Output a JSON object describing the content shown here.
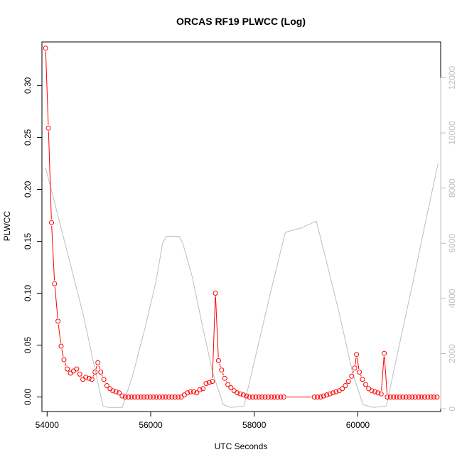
{
  "chart_data": {
    "type": "line",
    "title": "ORCAS RF19 PLWCC (Log)",
    "xlabel": "UTC Seconds",
    "ylabel": "PLWCC",
    "xlim": [
      53900,
      61600
    ],
    "ylim": [
      -0.014,
      0.342
    ],
    "y2lim": [
      -100,
      13300
    ],
    "x_ticks": [
      "54000",
      "56000",
      "58000",
      "60000"
    ],
    "y_ticks": [
      "0.00",
      "0.05",
      "0.10",
      "0.15",
      "0.20",
      "0.25",
      "0.30"
    ],
    "y2_ticks": [
      "0",
      "2000",
      "4000",
      "6000",
      "8000",
      "10000",
      "12000"
    ],
    "colors": {
      "primary": "#ff0000",
      "secondary": "#bebebe",
      "axis": "#000000"
    },
    "series": [
      {
        "color": "#ff0000",
        "marker": "open-circle",
        "axis": "left",
        "values": [
          [
            53970,
            0.336
          ],
          [
            54025,
            0.259
          ],
          [
            54085,
            0.168
          ],
          [
            54145,
            0.109
          ],
          [
            54210,
            0.073
          ],
          [
            54270,
            0.049
          ],
          [
            54325,
            0.036
          ],
          [
            54390,
            0.027
          ],
          [
            54450,
            0.023
          ],
          [
            54510,
            0.025
          ],
          [
            54570,
            0.027
          ],
          [
            54630,
            0.022
          ],
          [
            54690,
            0.017
          ],
          [
            54745,
            0.019
          ],
          [
            54810,
            0.018
          ],
          [
            54865,
            0.017
          ],
          [
            54925,
            0.024
          ],
          [
            54980,
            0.033
          ],
          [
            55035,
            0.024
          ],
          [
            55095,
            0.017
          ],
          [
            55155,
            0.011
          ],
          [
            55215,
            0.008
          ],
          [
            55270,
            0.006
          ],
          [
            55330,
            0.005
          ],
          [
            55390,
            0.004
          ],
          [
            55450,
            0.001
          ],
          [
            55510,
            0.0
          ],
          [
            55570,
            0.0
          ],
          [
            55630,
            0.0
          ],
          [
            55690,
            0.0
          ],
          [
            55750,
            0.0
          ],
          [
            55810,
            0.0
          ],
          [
            55870,
            0.0
          ],
          [
            55930,
            0.0
          ],
          [
            55990,
            0.0
          ],
          [
            56050,
            0.0
          ],
          [
            56110,
            0.0
          ],
          [
            56170,
            0.0
          ],
          [
            56230,
            0.0
          ],
          [
            56290,
            0.0
          ],
          [
            56350,
            0.0
          ],
          [
            56410,
            0.0
          ],
          [
            56470,
            0.0
          ],
          [
            56530,
            0.0
          ],
          [
            56590,
            0.0
          ],
          [
            56650,
            0.002
          ],
          [
            56710,
            0.004
          ],
          [
            56770,
            0.005
          ],
          [
            56830,
            0.005
          ],
          [
            56890,
            0.004
          ],
          [
            56950,
            0.007
          ],
          [
            57010,
            0.008
          ],
          [
            57070,
            0.013
          ],
          [
            57130,
            0.014
          ],
          [
            57190,
            0.015
          ],
          [
            57250,
            0.1
          ],
          [
            57310,
            0.035
          ],
          [
            57370,
            0.026
          ],
          [
            57430,
            0.018
          ],
          [
            57490,
            0.012
          ],
          [
            57550,
            0.009
          ],
          [
            57610,
            0.006
          ],
          [
            57670,
            0.004
          ],
          [
            57730,
            0.003
          ],
          [
            57790,
            0.002
          ],
          [
            57850,
            0.001
          ],
          [
            57910,
            0.0
          ],
          [
            57970,
            0.0
          ],
          [
            58030,
            0.0
          ],
          [
            58090,
            0.0
          ],
          [
            58150,
            0.0
          ],
          [
            58210,
            0.0
          ],
          [
            58270,
            0.0
          ],
          [
            58330,
            0.0
          ],
          [
            58390,
            0.0
          ],
          [
            58450,
            0.0
          ],
          [
            58510,
            0.0
          ],
          [
            58570,
            0.0
          ],
          [
            59160,
            0.0
          ],
          [
            59220,
            0.0
          ],
          [
            59280,
            0.0
          ],
          [
            59340,
            0.001
          ],
          [
            59400,
            0.002
          ],
          [
            59460,
            0.003
          ],
          [
            59520,
            0.004
          ],
          [
            59580,
            0.005
          ],
          [
            59640,
            0.006
          ],
          [
            59700,
            0.008
          ],
          [
            59760,
            0.011
          ],
          [
            59820,
            0.015
          ],
          [
            59880,
            0.02
          ],
          [
            59940,
            0.028
          ],
          [
            59975,
            0.041
          ],
          [
            60030,
            0.024
          ],
          [
            60090,
            0.017
          ],
          [
            60150,
            0.012
          ],
          [
            60210,
            0.008
          ],
          [
            60270,
            0.006
          ],
          [
            60330,
            0.005
          ],
          [
            60390,
            0.004
          ],
          [
            60450,
            0.003
          ],
          [
            60510,
            0.042
          ],
          [
            60570,
            0.0
          ],
          [
            60630,
            0.0
          ],
          [
            60690,
            0.0
          ],
          [
            60750,
            0.0
          ],
          [
            60810,
            0.0
          ],
          [
            60870,
            0.0
          ],
          [
            60930,
            0.0
          ],
          [
            60990,
            0.0
          ],
          [
            61050,
            0.0
          ],
          [
            61110,
            0.0
          ],
          [
            61170,
            0.0
          ],
          [
            61230,
            0.0
          ],
          [
            61290,
            0.0
          ],
          [
            61350,
            0.0
          ],
          [
            61410,
            0.0
          ],
          [
            61470,
            0.0
          ],
          [
            61530,
            0.0
          ]
        ]
      },
      {
        "color": "#bebebe",
        "marker": "none",
        "axis": "right",
        "values": [
          [
            53970,
            8750
          ],
          [
            54100,
            7800
          ],
          [
            54400,
            5600
          ],
          [
            54700,
            3400
          ],
          [
            54950,
            1200
          ],
          [
            55080,
            100
          ],
          [
            55180,
            50
          ],
          [
            55450,
            50
          ],
          [
            55650,
            1200
          ],
          [
            55900,
            3000
          ],
          [
            56100,
            4600
          ],
          [
            56230,
            6000
          ],
          [
            56300,
            6250
          ],
          [
            56550,
            6250
          ],
          [
            56620,
            6000
          ],
          [
            56800,
            4800
          ],
          [
            57000,
            3000
          ],
          [
            57200,
            1300
          ],
          [
            57400,
            150
          ],
          [
            57550,
            50
          ],
          [
            57800,
            100
          ],
          [
            58000,
            1700
          ],
          [
            58300,
            4100
          ],
          [
            58600,
            6400
          ],
          [
            58900,
            6550
          ],
          [
            59200,
            6800
          ],
          [
            59400,
            5300
          ],
          [
            59650,
            3400
          ],
          [
            59900,
            1300
          ],
          [
            60100,
            150
          ],
          [
            60300,
            50
          ],
          [
            60550,
            100
          ],
          [
            60800,
            2300
          ],
          [
            61100,
            4900
          ],
          [
            61300,
            6700
          ],
          [
            61550,
            8900
          ]
        ]
      }
    ]
  }
}
